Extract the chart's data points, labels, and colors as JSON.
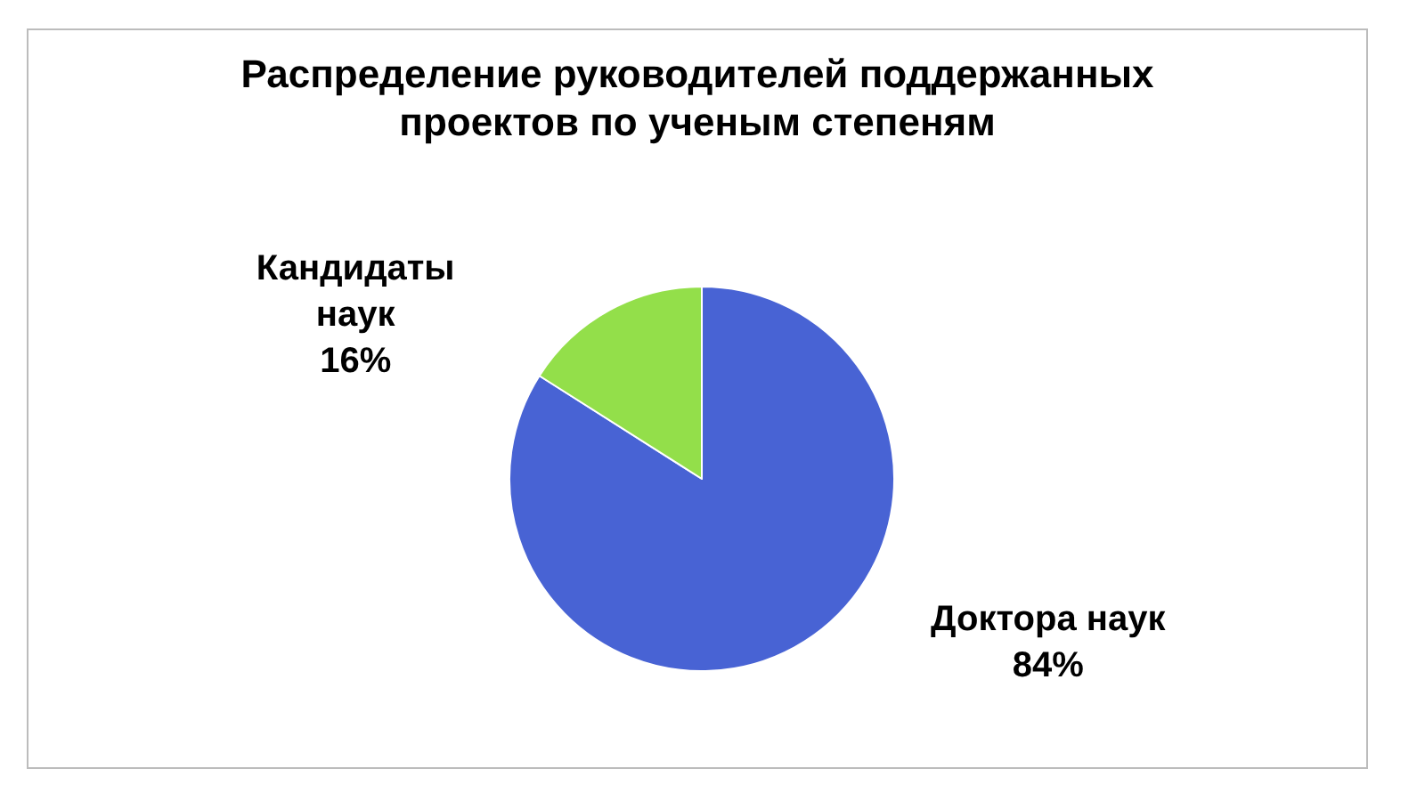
{
  "chart_data": {
    "type": "pie",
    "title": "Распределение руководителей поддержанных проектов по ученым степеням",
    "categories": [
      "Доктора наук",
      "Кандидаты наук"
    ],
    "values": [
      84,
      16
    ],
    "colors": [
      "#4863d4",
      "#93df4a"
    ],
    "value_labels": [
      "84%",
      "16%"
    ]
  }
}
